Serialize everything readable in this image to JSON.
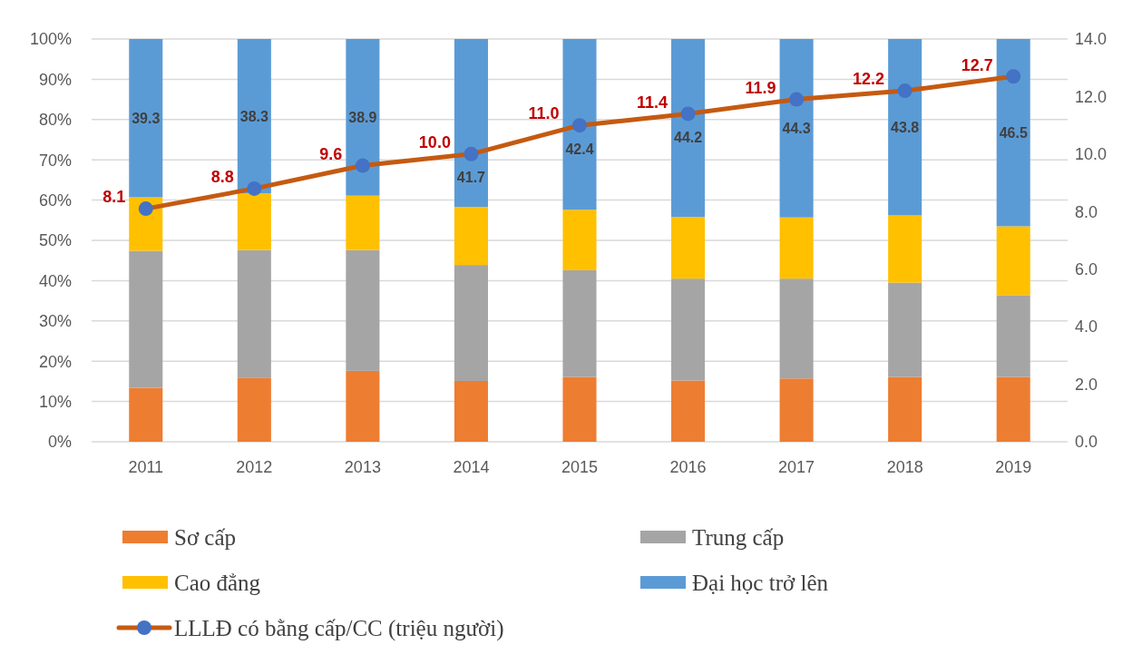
{
  "chart_data": {
    "type": "bar",
    "stacked": true,
    "categories": [
      "2011",
      "2012",
      "2013",
      "2014",
      "2015",
      "2016",
      "2017",
      "2018",
      "2019"
    ],
    "series": [
      {
        "name": "Sơ cấp",
        "color": "#ed7d31",
        "values": [
          13.4,
          15.8,
          17.6,
          15.1,
          16.1,
          15.2,
          15.7,
          16.1,
          16.1
        ]
      },
      {
        "name": "Trung cấp",
        "color": "#a5a5a5",
        "values": [
          34.0,
          31.8,
          30.0,
          28.8,
          26.5,
          25.3,
          24.8,
          23.4,
          20.3
        ]
      },
      {
        "name": "Cao đẳng",
        "color": "#ffc000",
        "values": [
          13.3,
          14.1,
          13.5,
          14.4,
          15.0,
          15.3,
          15.2,
          16.7,
          17.1
        ]
      },
      {
        "name": "Đại học trở lên",
        "color": "#5b9bd5",
        "values": [
          39.3,
          38.3,
          38.9,
          41.7,
          42.4,
          44.2,
          44.3,
          43.8,
          46.5
        ],
        "value_labels": [
          "39.3",
          "38.3",
          "38.9",
          "41.7",
          "42.4",
          "44.2",
          "44.3",
          "43.8",
          "46.5"
        ]
      },
      {
        "name": "LLLĐ có bằng cấp/CC (triệu người)",
        "type": "line",
        "axis": "y2",
        "color": "#c55a11",
        "colors": [
          "#4472c4",
          "#4472c4",
          "#4472c4",
          "#4472c4",
          "#4472c4",
          "#4472c4",
          "#4472c4",
          "#4472c4",
          "#4472c4"
        ],
        "marker": "circle",
        "values": [
          8.1,
          8.8,
          9.6,
          10.0,
          11.0,
          11.4,
          11.9,
          12.2,
          12.7
        ],
        "value_labels": [
          "8.1",
          "8.8",
          "9.6",
          "10.0",
          "11.0",
          "11.4",
          "11.9",
          "12.2",
          "12.7"
        ]
      }
    ],
    "ylim": [
      0,
      100
    ],
    "yticks": [
      {
        "value": 0,
        "label": "0%"
      },
      {
        "value": 10,
        "label": "10%"
      },
      {
        "value": 20,
        "label": "20%"
      },
      {
        "value": 30,
        "label": "30%"
      },
      {
        "value": 40,
        "label": "40%"
      },
      {
        "value": 50,
        "label": "50%"
      },
      {
        "value": 60,
        "label": "60%"
      },
      {
        "value": 70,
        "label": "70%"
      },
      {
        "value": 80,
        "label": "80%"
      },
      {
        "value": 90,
        "label": "90%"
      },
      {
        "value": 100,
        "label": "100%"
      }
    ],
    "y2lim": [
      0,
      14
    ],
    "y2ticks": [
      {
        "value": 0,
        "label": "0.0"
      },
      {
        "value": 2,
        "label": "2.0"
      },
      {
        "value": 4,
        "label": "4.0"
      },
      {
        "value": 6,
        "label": "6.0"
      },
      {
        "value": 8,
        "label": "8.0"
      },
      {
        "value": 10,
        "label": "10.0"
      },
      {
        "value": 12,
        "label": "12.0"
      },
      {
        "value": 14,
        "label": "14.0"
      }
    ],
    "grid": "y",
    "legend": "bottom"
  }
}
